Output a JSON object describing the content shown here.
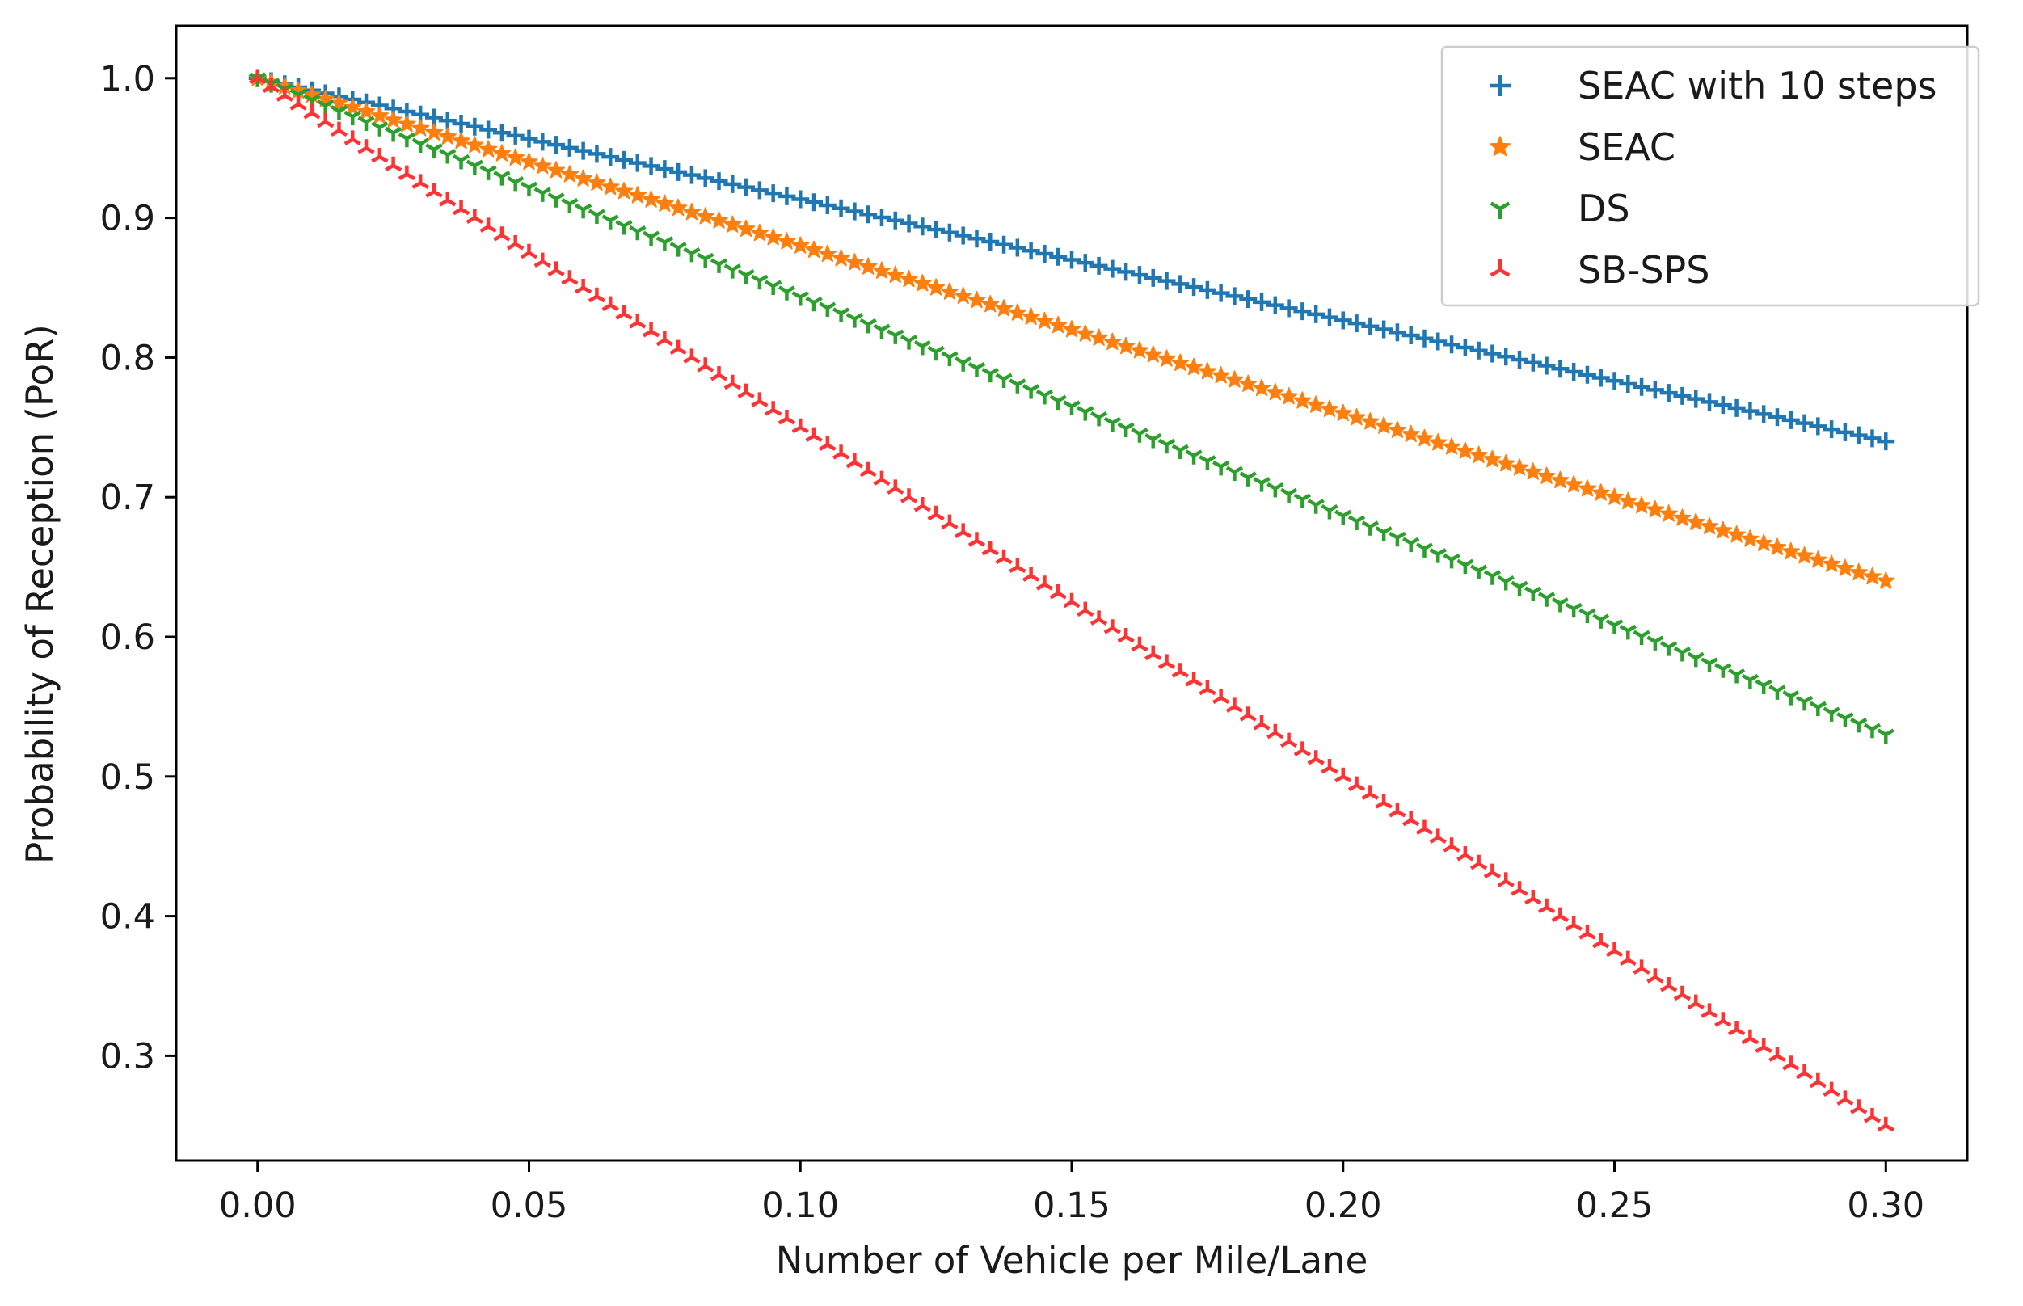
{
  "chart_data": {
    "type": "scatter",
    "title": "",
    "xlabel": "Number of Vehicle per Mile/Lane",
    "ylabel": "Probability of Reception (PoR)",
    "xlim": [
      -0.015,
      0.315
    ],
    "ylim": [
      0.225,
      1.0375
    ],
    "xticks": [
      0.0,
      0.05,
      0.1,
      0.15,
      0.2,
      0.25,
      0.3
    ],
    "xtick_labels": [
      "0.00",
      "0.05",
      "0.10",
      "0.15",
      "0.20",
      "0.25",
      "0.30"
    ],
    "yticks": [
      0.3,
      0.4,
      0.5,
      0.6,
      0.7,
      0.8,
      0.9,
      1.0
    ],
    "ytick_labels": [
      "0.3",
      "0.4",
      "0.5",
      "0.6",
      "0.7",
      "0.8",
      "0.9",
      "1.0"
    ],
    "x_range": {
      "start": 0.0,
      "end": 0.3,
      "points": 121
    },
    "legend_position": "top-right",
    "series": [
      {
        "name": "SEAC with 10 steps",
        "marker": "plus",
        "color": "#1f77b4",
        "y_start": 1.0,
        "y_end": 0.74
      },
      {
        "name": "SEAC",
        "marker": "star",
        "color": "#ff7f0e",
        "y_start": 1.0,
        "y_end": 0.64
      },
      {
        "name": "DS",
        "marker": "tri-down",
        "color": "#2ca02c",
        "y_start": 1.0,
        "y_end": 0.53
      },
      {
        "name": "SB-SPS",
        "marker": "tri-up",
        "color": "#ff3333",
        "y_start": 1.0,
        "y_end": 0.25
      }
    ]
  }
}
